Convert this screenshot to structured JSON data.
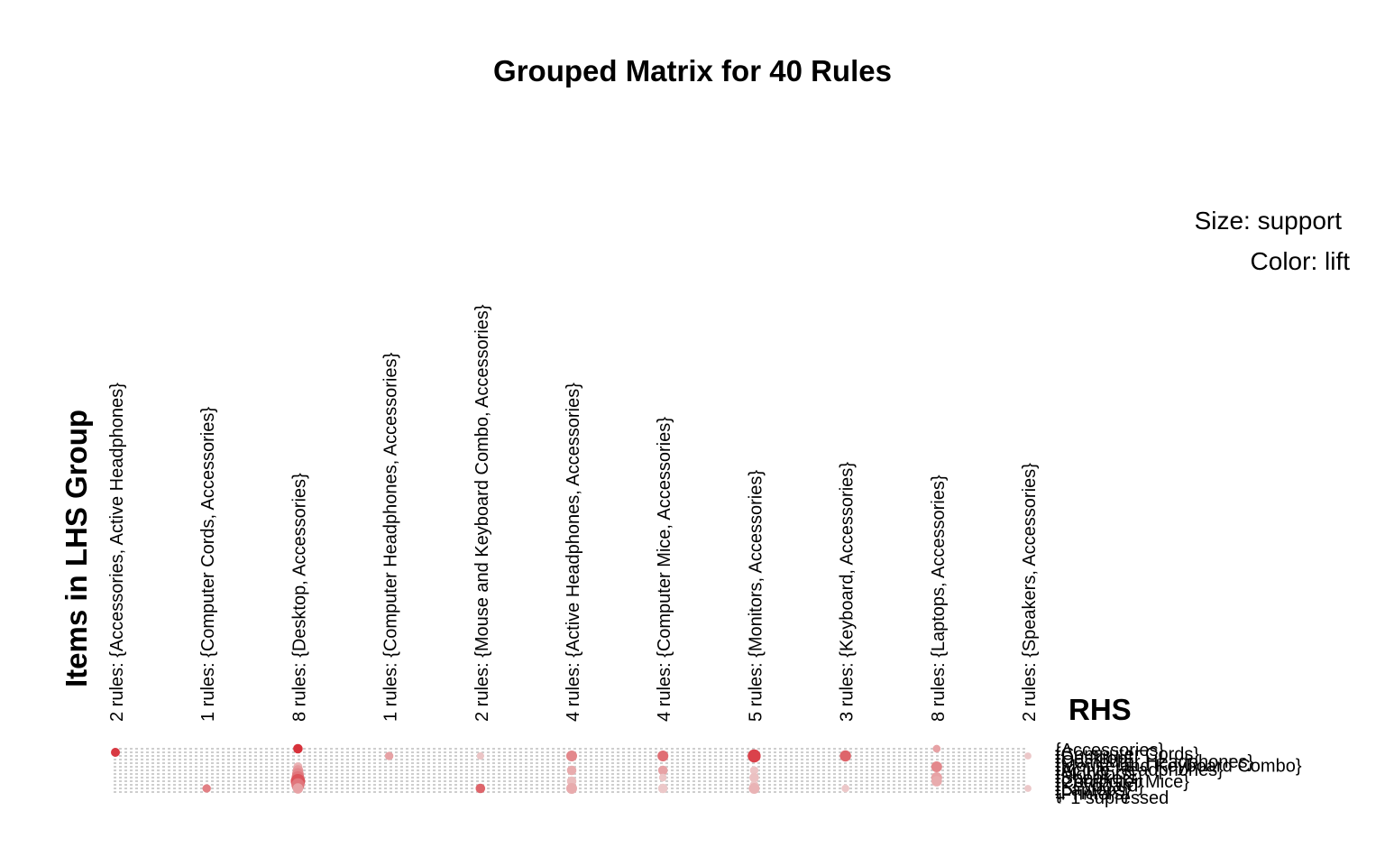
{
  "chart_data": {
    "type": "grouped-matrix",
    "title": "Grouped Matrix for 40 Rules",
    "lhs_axis_label": "Items in LHS Group",
    "rhs_axis_label": "RHS",
    "legend": {
      "size": "Size: support",
      "color": "Color: lift"
    },
    "lhs_groups": [
      "2 rules: {Accessories, Active Headphones}",
      "1 rules: {Computer Cords, Accessories}",
      "8 rules: {Desktop, Accessories}",
      "1 rules: {Computer Headphones, Accessories}",
      "2 rules: {Mouse and Keyboard Combo, Accessories}",
      "4 rules: {Active Headphones, Accessories}",
      "4 rules: {Computer Mice, Accessories}",
      "5 rules: {Monitors, Accessories}",
      "3 rules: {Keyboard, Accessories}",
      "8 rules: {Laptops, Accessories}",
      "2 rules: {Speakers, Accessories}"
    ],
    "rhs_items": [
      "{Accessories}",
      "{Computer Cords}",
      "{Desktop}",
      "{Computer Headphones}",
      "{Mouse and Keyboard Combo}",
      "{Active Headphones}",
      "{Monitors}",
      "{Speakers}",
      "{Computer Mice}",
      "{Keyboard}",
      "{Laptops}",
      "{Printers}",
      "+ 1 supressed"
    ],
    "points": [
      {
        "group": 0,
        "rhs": 1,
        "support": 0.25,
        "lift": 0.9
      },
      {
        "group": 1,
        "rhs": 11,
        "support": 0.2,
        "lift": 0.5
      },
      {
        "group": 2,
        "rhs": 0,
        "support": 0.3,
        "lift": 0.95
      },
      {
        "group": 2,
        "rhs": 5,
        "support": 0.25,
        "lift": 0.2
      },
      {
        "group": 2,
        "rhs": 6,
        "support": 0.4,
        "lift": 0.35
      },
      {
        "group": 2,
        "rhs": 7,
        "support": 0.55,
        "lift": 0.45
      },
      {
        "group": 2,
        "rhs": 8,
        "support": 0.7,
        "lift": 0.55
      },
      {
        "group": 2,
        "rhs": 9,
        "support": 1.0,
        "lift": 0.75
      },
      {
        "group": 2,
        "rhs": 10,
        "support": 0.75,
        "lift": 0.55
      },
      {
        "group": 2,
        "rhs": 11,
        "support": 0.4,
        "lift": 0.3
      },
      {
        "group": 3,
        "rhs": 2,
        "support": 0.2,
        "lift": 0.3
      },
      {
        "group": 4,
        "rhs": 2,
        "support": 0.12,
        "lift": 0.1
      },
      {
        "group": 4,
        "rhs": 11,
        "support": 0.3,
        "lift": 0.65
      },
      {
        "group": 5,
        "rhs": 2,
        "support": 0.45,
        "lift": 0.45
      },
      {
        "group": 5,
        "rhs": 6,
        "support": 0.3,
        "lift": 0.25
      },
      {
        "group": 5,
        "rhs": 9,
        "support": 0.3,
        "lift": 0.15
      },
      {
        "group": 5,
        "rhs": 11,
        "support": 0.45,
        "lift": 0.25
      },
      {
        "group": 6,
        "rhs": 2,
        "support": 0.45,
        "lift": 0.6
      },
      {
        "group": 6,
        "rhs": 6,
        "support": 0.3,
        "lift": 0.3
      },
      {
        "group": 6,
        "rhs": 8,
        "support": 0.15,
        "lift": 0.1
      },
      {
        "group": 6,
        "rhs": 11,
        "support": 0.3,
        "lift": 0.08
      },
      {
        "group": 7,
        "rhs": 2,
        "support": 0.75,
        "lift": 0.85
      },
      {
        "group": 7,
        "rhs": 6,
        "support": 0.2,
        "lift": 0.1
      },
      {
        "group": 7,
        "rhs": 8,
        "support": 0.3,
        "lift": 0.12
      },
      {
        "group": 7,
        "rhs": 10,
        "support": 0.2,
        "lift": 0.1
      },
      {
        "group": 7,
        "rhs": 11,
        "support": 0.45,
        "lift": 0.2
      },
      {
        "group": 8,
        "rhs": 2,
        "support": 0.5,
        "lift": 0.65
      },
      {
        "group": 8,
        "rhs": 11,
        "support": 0.15,
        "lift": 0.08
      },
      {
        "group": 9,
        "rhs": 0,
        "support": 0.15,
        "lift": 0.3
      },
      {
        "group": 9,
        "rhs": 5,
        "support": 0.45,
        "lift": 0.45
      },
      {
        "group": 9,
        "rhs": 8,
        "support": 0.45,
        "lift": 0.3
      },
      {
        "group": 9,
        "rhs": 9,
        "support": 0.4,
        "lift": 0.25
      },
      {
        "group": 10,
        "rhs": 2,
        "support": 0.1,
        "lift": 0.08
      },
      {
        "group": 10,
        "rhs": 11,
        "support": 0.1,
        "lift": 0.08
      }
    ]
  }
}
